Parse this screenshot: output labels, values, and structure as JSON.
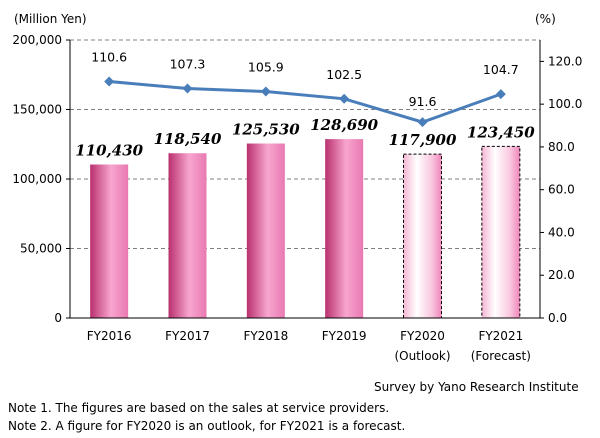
{
  "chart_data": {
    "type": "bar",
    "categories": [
      "FY2016",
      "FY2017",
      "FY2018",
      "FY2019",
      "FY2020",
      "FY2021"
    ],
    "category_sublabels": [
      "",
      "",
      "",
      "",
      "(Outlook)",
      "(Forecast)"
    ],
    "series": [
      {
        "type": "bar",
        "axis": "left",
        "values": [
          110430,
          118540,
          125530,
          128690,
          117900,
          123450
        ],
        "value_labels": [
          "110,430",
          "118,540",
          "125,530",
          "128,690",
          "117,900",
          "123,450"
        ],
        "estimated": [
          false,
          false,
          false,
          false,
          true,
          true
        ]
      },
      {
        "type": "line",
        "axis": "right",
        "values": [
          110.6,
          107.3,
          105.9,
          102.5,
          91.6,
          104.7
        ],
        "value_labels": [
          "110.6",
          "107.3",
          "105.9",
          "102.5",
          "91.6",
          "104.7"
        ]
      }
    ],
    "left_axis": {
      "unit_label": "(Million Yen)",
      "ylim": [
        0,
        200000
      ],
      "ticks": [
        "0",
        "50,000",
        "100,000",
        "150,000",
        "200,000"
      ]
    },
    "right_axis": {
      "unit_label": "(%)",
      "ylim": [
        0,
        130
      ],
      "ticks": [
        "0.0",
        "20.0",
        "40.0",
        "60.0",
        "80.0",
        "100.0",
        "120.0"
      ]
    },
    "grid": "dashed horizontal",
    "colors": {
      "bar_dark": "#b9306e",
      "bar_light": "#f8a6cf",
      "line": "#4a7ebb"
    }
  },
  "footer": {
    "source": "Survey by Yano Research Institute",
    "note1": "Note 1.  The figures are based on the sales at service providers.",
    "note2": "Note 2.  A figure for FY2020 is an outlook, for FY2021 is a forecast."
  }
}
